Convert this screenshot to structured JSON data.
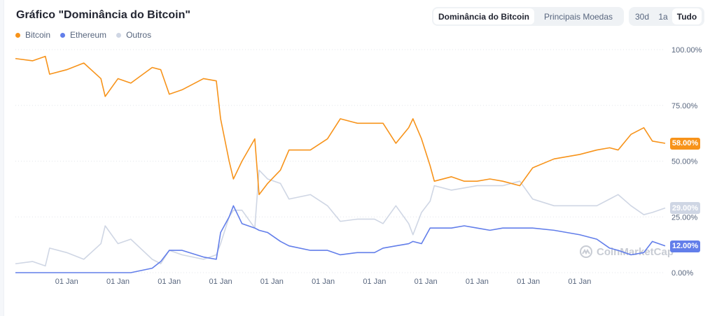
{
  "title": "Gráfico \"Dominância do Bitcoin\"",
  "tabs": [
    {
      "label": "Dominância do Bitcoin",
      "active": true
    },
    {
      "label": "Principais Moedas",
      "active": false
    }
  ],
  "ranges": [
    {
      "label": "30d",
      "active": false
    },
    {
      "label": "1a",
      "active": false
    },
    {
      "label": "Tudo",
      "active": true
    }
  ],
  "watermark": "CoinMarketCap",
  "chart_data": {
    "type": "line",
    "title": "Gráfico \"Dominância do Bitcoin\"",
    "legend_placement": "top-left",
    "grid": true,
    "ylim": [
      0,
      100
    ],
    "y_ticks": [
      "100.00%",
      "75.00%",
      "50.00%",
      "25.00%",
      "0.00%"
    ],
    "y_tick_values": [
      100,
      75,
      50,
      25,
      0
    ],
    "x_ticks": [
      "01 Jan",
      "01 Jan",
      "01 Jan",
      "01 Jan",
      "01 Jan",
      "01 Jan",
      "01 Jan",
      "01 Jan",
      "01 Jan",
      "01 Jan",
      "01 Jan"
    ],
    "x_tick_dates": [
      "2014-01",
      "2015-01",
      "2016-01",
      "2017-01",
      "2018-01",
      "2019-01",
      "2020-01",
      "2021-01",
      "2022-01",
      "2023-01",
      "2024-01"
    ],
    "xlim": [
      "2013-01",
      "2025-09"
    ],
    "x": [
      "2013-01",
      "2013-05",
      "2013-08",
      "2013-09",
      "2014-01",
      "2014-05",
      "2014-09",
      "2014-10",
      "2015-01",
      "2015-04",
      "2015-09",
      "2015-11",
      "2016-01",
      "2016-04",
      "2016-09",
      "2016-12",
      "2017-01",
      "2017-03",
      "2017-04",
      "2017-06",
      "2017-09",
      "2017-10",
      "2017-12",
      "2018-03",
      "2018-05",
      "2018-10",
      "2019-02",
      "2019-05",
      "2019-09",
      "2020-01",
      "2020-03",
      "2020-06",
      "2020-09",
      "2020-10",
      "2020-12",
      "2021-02",
      "2021-03",
      "2021-07",
      "2021-10",
      "2022-01",
      "2022-04",
      "2022-07",
      "2022-11",
      "2023-02",
      "2023-07",
      "2024-01",
      "2024-05",
      "2024-08",
      "2024-10",
      "2025-01",
      "2025-04",
      "2025-06",
      "2025-09"
    ],
    "series": [
      {
        "name": "Bitcoin",
        "color": "#f7931a",
        "current_label": "58.00%",
        "values": [
          96,
          95,
          97,
          89,
          91,
          94,
          87,
          79,
          87,
          85,
          92,
          91,
          80,
          82,
          87,
          86,
          69,
          50,
          42,
          50,
          60,
          35,
          40,
          46,
          55,
          55,
          60,
          69,
          67,
          67,
          67,
          58,
          65,
          69,
          60,
          48,
          41,
          43,
          41,
          41,
          42,
          41,
          39,
          47,
          51,
          53,
          55,
          56,
          55,
          62,
          65,
          59,
          58
        ]
      },
      {
        "name": "Ethereum",
        "color": "#627eea",
        "current_label": "12.00%",
        "values": [
          0,
          0,
          0,
          0,
          0,
          0,
          0,
          0,
          0,
          0,
          2,
          5,
          10,
          10,
          7,
          6,
          18,
          25,
          30,
          22,
          20,
          19,
          18,
          14,
          12,
          10,
          10,
          8,
          9,
          9,
          11,
          12,
          13,
          14,
          13,
          20,
          20,
          20,
          21,
          20,
          19,
          20,
          20,
          20,
          19,
          17,
          15,
          11,
          10,
          8,
          9,
          14,
          12
        ]
      },
      {
        "name": "Outros",
        "color": "#cfd6e4",
        "current_label": "29.00%",
        "values": [
          4,
          5,
          3,
          11,
          9,
          6,
          13,
          21,
          13,
          15,
          6,
          4,
          10,
          8,
          6,
          8,
          13,
          25,
          28,
          28,
          20,
          46,
          42,
          40,
          33,
          35,
          30,
          23,
          24,
          24,
          22,
          30,
          22,
          17,
          27,
          32,
          39,
          37,
          38,
          39,
          39,
          39,
          41,
          33,
          30,
          30,
          30,
          33,
          35,
          30,
          26,
          27,
          29
        ]
      }
    ]
  }
}
